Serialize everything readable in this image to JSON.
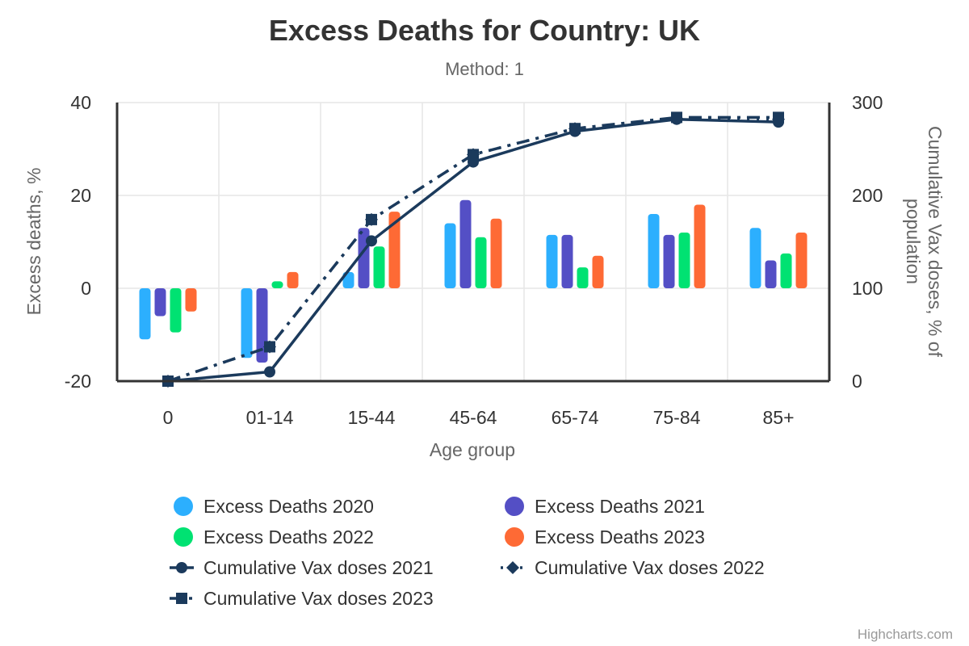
{
  "chart_data": {
    "type": "bar",
    "title": "Excess Deaths for Country: UK",
    "subtitle": "Method: 1",
    "xlabel": "Age group",
    "ylabel": "Excess deaths, %",
    "y2label_lines": [
      "Cumulative Vax doses, % of",
      "population"
    ],
    "categories": [
      "0",
      "01-14",
      "15-44",
      "45-64",
      "65-74",
      "75-84",
      "85+"
    ],
    "ylim": [
      -20,
      40
    ],
    "yticks": [
      -20,
      0,
      20,
      40
    ],
    "y2lim": [
      0,
      300
    ],
    "y2ticks": [
      0,
      100,
      200,
      300
    ],
    "grid": true,
    "legend_position": "bottom",
    "series": [
      {
        "name": "Excess Deaths 2020",
        "type": "bar",
        "color": "#2caffe",
        "values": [
          -11,
          -15,
          3.5,
          14,
          11.5,
          16,
          13
        ]
      },
      {
        "name": "Excess Deaths 2021",
        "type": "bar",
        "color": "#544fc5",
        "values": [
          -6,
          -16,
          13,
          19,
          11.5,
          11.5,
          6
        ]
      },
      {
        "name": "Excess Deaths 2022",
        "type": "bar",
        "color": "#00e272",
        "values": [
          -9.5,
          1.5,
          9,
          11,
          4.5,
          12,
          7.5
        ]
      },
      {
        "name": "Excess Deaths 2023",
        "type": "bar",
        "color": "#fe6a35",
        "values": [
          -5,
          3.5,
          16.5,
          15,
          7,
          18,
          12
        ]
      },
      {
        "name": "Cumulative Vax doses 2021",
        "type": "line",
        "axis": "y2",
        "color": "#1b3a5c",
        "dash": "solid",
        "marker": "circle",
        "values": [
          0,
          10,
          151,
          236,
          269,
          282,
          279
        ]
      },
      {
        "name": "Cumulative Vax doses 2022",
        "type": "line",
        "axis": "y2",
        "color": "#1b3a5c",
        "dash": "dot",
        "marker": "diamond",
        "values": [
          0,
          37,
          174,
          244,
          272,
          283,
          282
        ]
      },
      {
        "name": "Cumulative Vax doses 2023",
        "type": "line",
        "axis": "y2",
        "color": "#1b3a5c",
        "dash": "dashdot",
        "marker": "square",
        "values": [
          0,
          37,
          174,
          244,
          272,
          284,
          284
        ]
      }
    ],
    "credits": "Highcharts.com"
  }
}
